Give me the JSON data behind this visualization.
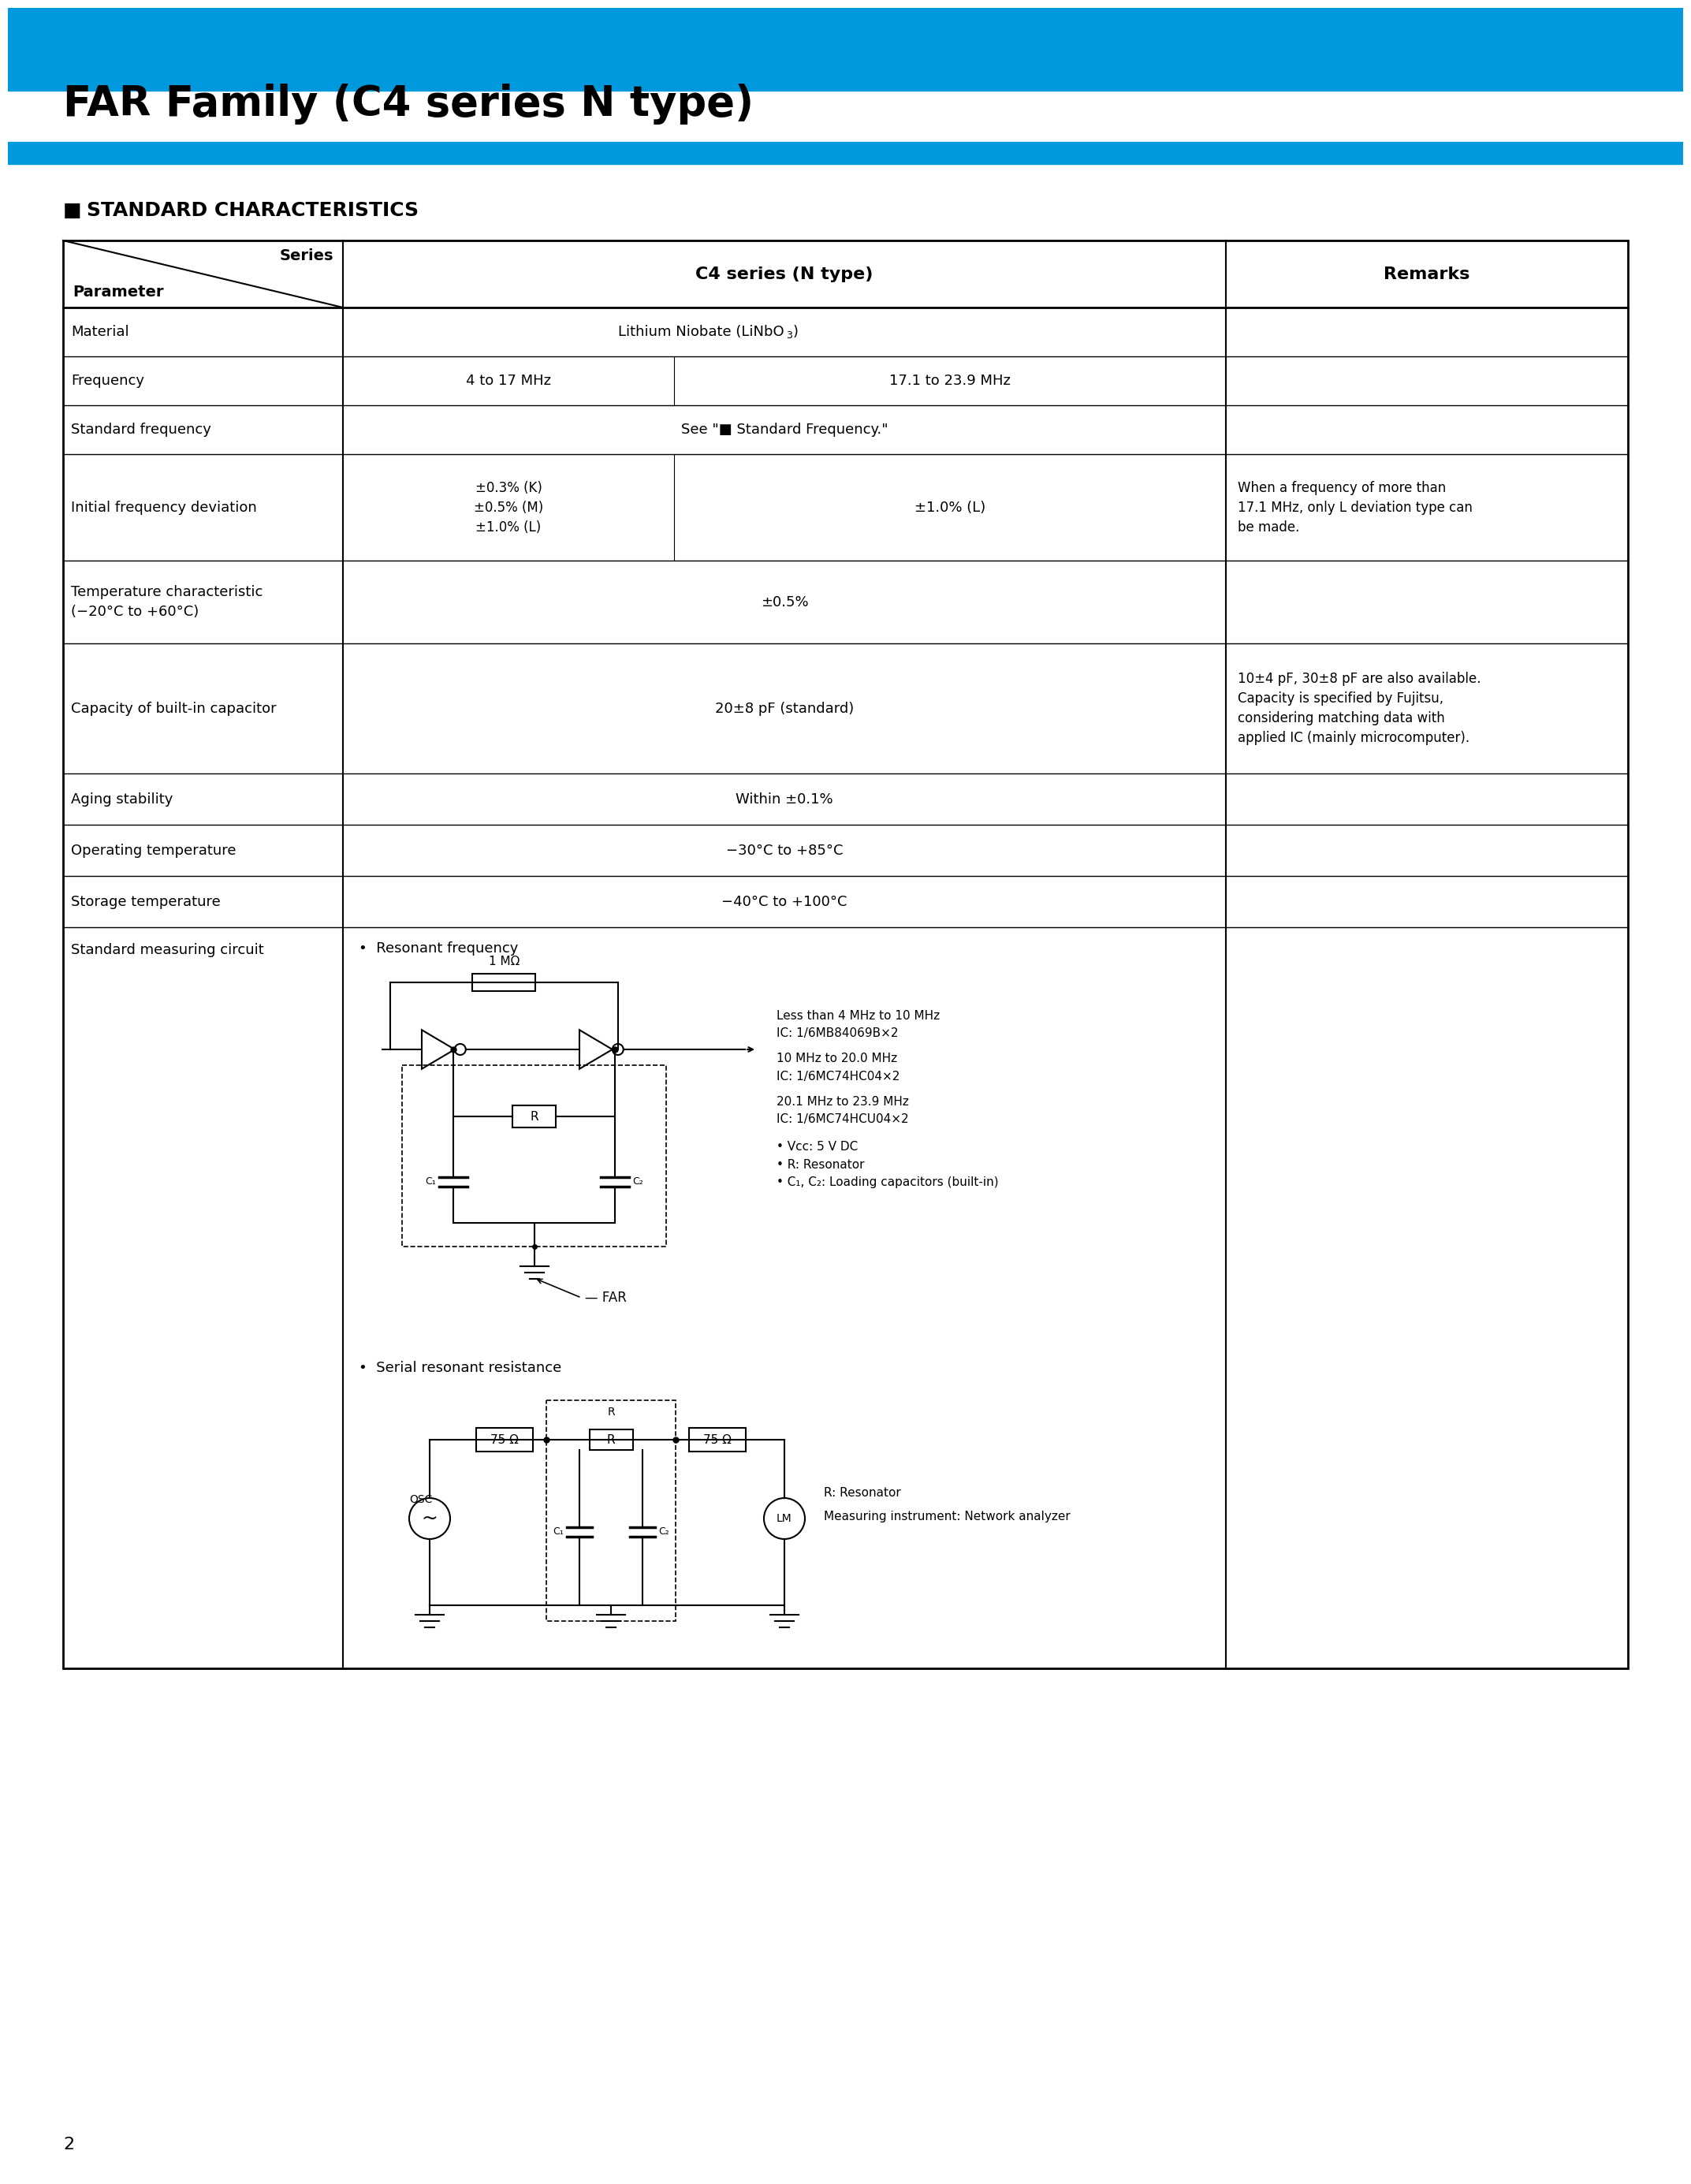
{
  "page_title": "FAR Family (C4 series N type)",
  "blue_color": "#0099DD",
  "section_title": "STANDARD CHARACTERISTICS",
  "page_number": "2",
  "bg_color": "#ffffff"
}
